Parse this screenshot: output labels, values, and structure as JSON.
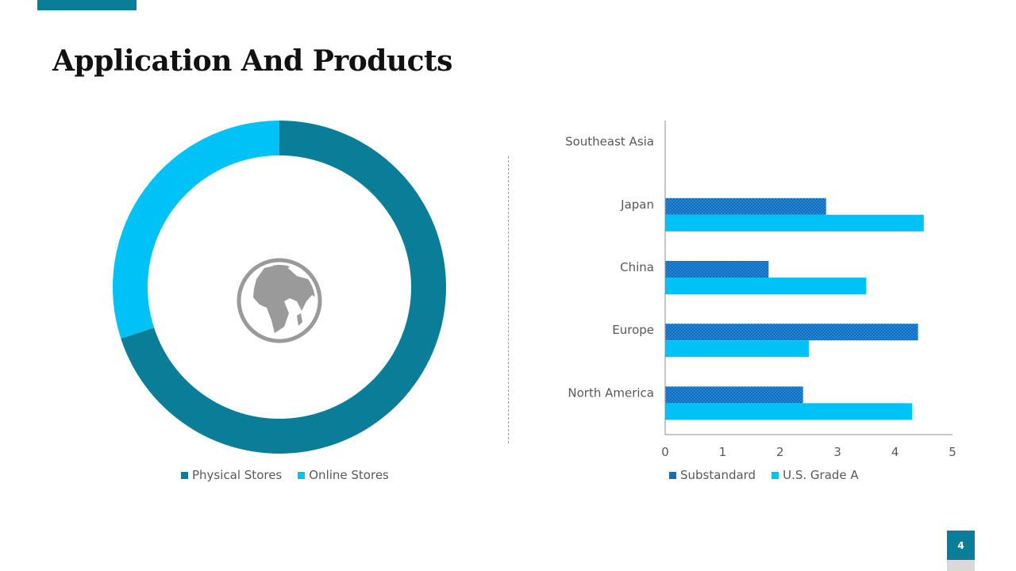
{
  "slide": {
    "title": "Application And Products",
    "page_number": "4",
    "accent_color": "#0a7d99"
  },
  "chart_data": [
    {
      "type": "pie",
      "subtype": "donut",
      "categories": [
        "Physical Stores",
        "Online Stores"
      ],
      "values": [
        70,
        30
      ],
      "colors": [
        "#0a7d99",
        "#00c2f5"
      ],
      "center_icon": "globe-icon",
      "legend_position": "bottom"
    },
    {
      "type": "bar",
      "orientation": "horizontal",
      "categories": [
        "North America",
        "Europe",
        "China",
        "Japan",
        "Southeast Asia"
      ],
      "series": [
        {
          "name": "Substandard",
          "values": [
            2.4,
            4.4,
            1.8,
            2.8,
            0
          ],
          "color": "#0a6fc2"
        },
        {
          "name": "U.S. Grade A",
          "values": [
            4.3,
            2.5,
            3.5,
            4.5,
            0
          ],
          "color": "#00c2f5"
        }
      ],
      "xlim": [
        0,
        5
      ],
      "xticks": [
        "0",
        "1",
        "2",
        "3",
        "4",
        "5"
      ],
      "legend_position": "bottom"
    }
  ]
}
